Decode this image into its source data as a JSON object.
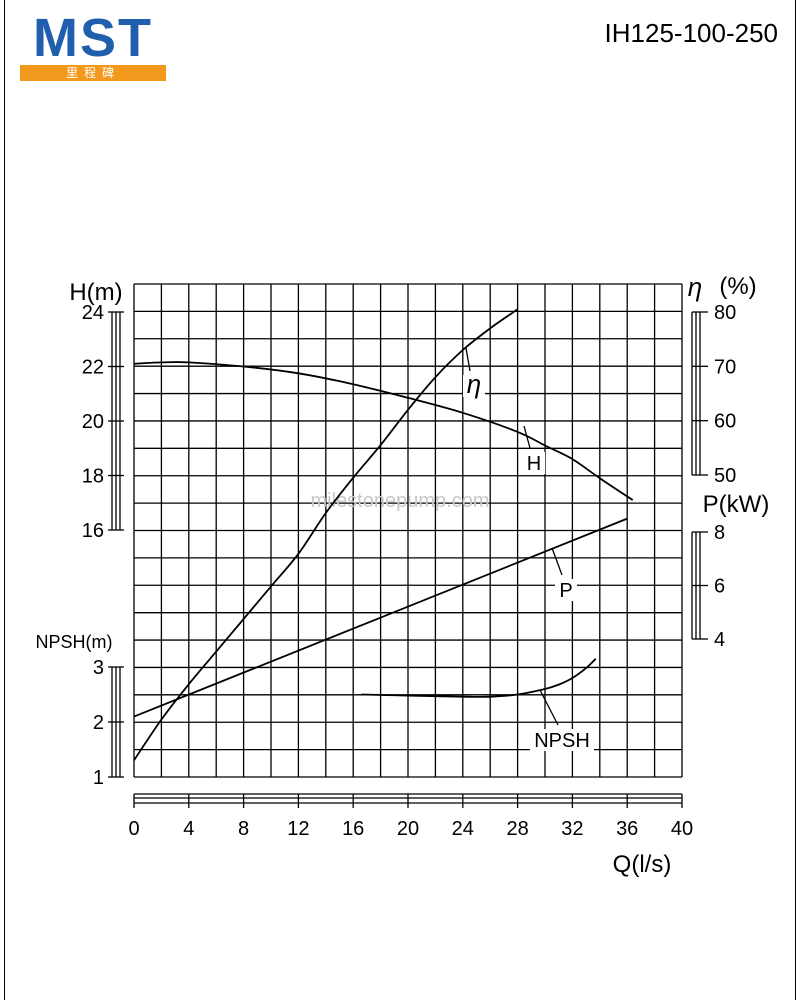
{
  "header": {
    "logo_text": "MST",
    "logo_subtext": "里程碑",
    "model": "IH125-100-250",
    "watermark": "milestonepump.com"
  },
  "colors": {
    "logo_blue": "#1f5fae",
    "logo_orange": "#f39a1e",
    "line": "#000000",
    "watermark": "#c8c8c8"
  },
  "chart_data": {
    "type": "line",
    "xlabel": "Q(l/s)",
    "x_ticks": [
      0,
      4,
      8,
      12,
      16,
      20,
      24,
      28,
      32,
      36,
      40
    ],
    "xlim": [
      0,
      40
    ],
    "axes": {
      "H": {
        "label": "H(m)",
        "ticks": [
          16,
          18,
          20,
          22,
          24
        ],
        "range": [
          16,
          24
        ]
      },
      "eta": {
        "label_symbol": "η",
        "label_unit": "(%)",
        "ticks": [
          50,
          60,
          70,
          80
        ],
        "range": [
          50,
          80
        ]
      },
      "P": {
        "label": "P(kW)",
        "ticks": [
          4,
          6,
          8
        ],
        "range": [
          4,
          8
        ]
      },
      "NPSH": {
        "label": "NPSH(m)",
        "ticks": [
          1,
          2,
          3
        ],
        "range": [
          1,
          3
        ]
      }
    },
    "series": [
      {
        "name": "H",
        "axis": "H",
        "x": [
          0,
          2,
          4,
          8,
          12,
          16,
          20,
          24,
          28,
          30,
          32,
          34,
          36.4
        ],
        "y": [
          22.1,
          22.15,
          22.15,
          22.0,
          21.75,
          21.35,
          20.85,
          20.3,
          19.6,
          19.1,
          18.6,
          17.9,
          17.1
        ]
      },
      {
        "name": "η",
        "axis": "eta",
        "x": [
          0,
          2,
          4,
          6,
          8,
          10,
          12,
          14,
          16,
          18,
          20,
          22,
          24,
          26,
          28
        ],
        "y": [
          -2.5,
          5,
          11.5,
          17.5,
          23.5,
          29.5,
          35.5,
          43,
          49.5,
          55.5,
          62,
          68,
          73,
          77,
          80.5
        ]
      },
      {
        "name": "P",
        "axis": "P",
        "x": [
          0,
          36
        ],
        "y": [
          1.1,
          8.5
        ]
      },
      {
        "name": "NPSH",
        "axis": "NPSH",
        "x": [
          16.6,
          20,
          24,
          26,
          28,
          30,
          31,
          32,
          33,
          33.7
        ],
        "y": [
          2.5,
          2.48,
          2.46,
          2.46,
          2.5,
          2.6,
          2.68,
          2.8,
          2.98,
          3.15
        ]
      }
    ]
  }
}
